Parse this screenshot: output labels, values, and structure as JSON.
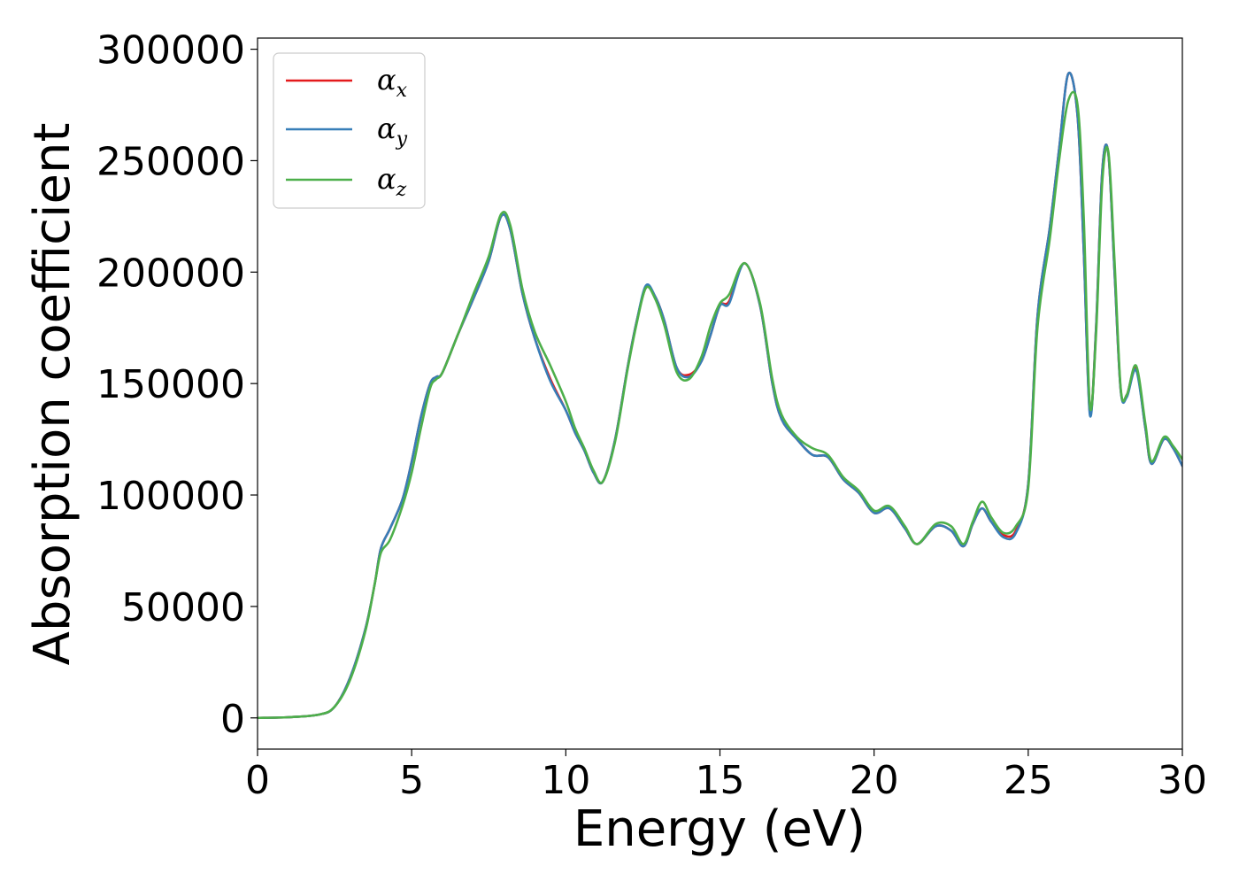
{
  "chart_data": {
    "type": "line",
    "title": "",
    "xlabel": "Energy (eV)",
    "ylabel": "Absorption coefficient",
    "xlim": [
      0,
      30
    ],
    "ylim": [
      -14000,
      305000
    ],
    "xticks": [
      0,
      5,
      10,
      15,
      20,
      25,
      30
    ],
    "yticks": [
      0,
      50000,
      100000,
      150000,
      200000,
      250000,
      300000
    ],
    "grid": false,
    "legend_position": "top-left",
    "series": [
      {
        "name": "αx",
        "legend_symbol": "α",
        "legend_subscript": "x",
        "color": "#e41a1c",
        "x": [
          0,
          1,
          2,
          2.5,
          3,
          3.5,
          3.8,
          4,
          4.3,
          4.7,
          5,
          5.3,
          5.6,
          5.8,
          6,
          6.5,
          7,
          7.5,
          7.9,
          8.2,
          8.6,
          9,
          9.5,
          10,
          10.3,
          10.6,
          10.9,
          11.2,
          11.6,
          12,
          12.3,
          12.6,
          12.9,
          13.2,
          13.6,
          14,
          14.4,
          14.7,
          15,
          15.3,
          15.8,
          16.3,
          16.7,
          17,
          17.5,
          18,
          18.5,
          19,
          19.5,
          20,
          20.5,
          21,
          21.4,
          22,
          22.5,
          22.9,
          23.2,
          23.5,
          23.8,
          24.2,
          24.6,
          25,
          25.3,
          25.7,
          26.0,
          26.3,
          26.6,
          26.8,
          27.0,
          27.2,
          27.4,
          27.6,
          27.8,
          28.0,
          28.2,
          28.5,
          28.8,
          29.0,
          29.4,
          29.7,
          30
        ],
        "y": [
          0,
          300,
          1500,
          5000,
          18000,
          40000,
          60000,
          76000,
          85000,
          98000,
          115000,
          135000,
          150000,
          153000,
          155000,
          172000,
          188000,
          205000,
          225000,
          219000,
          190000,
          170000,
          152000,
          138000,
          128000,
          120000,
          110000,
          106000,
          125000,
          157000,
          178000,
          193000,
          189000,
          178000,
          157000,
          154000,
          160000,
          172000,
          185000,
          187000,
          204000,
          185000,
          150000,
          134000,
          125000,
          118000,
          117000,
          107000,
          101000,
          92000,
          94000,
          85000,
          78000,
          86000,
          84000,
          77000,
          87000,
          94000,
          88000,
          82000,
          84000,
          105000,
          180000,
          220000,
          255000,
          289000,
          270000,
          210000,
          137000,
          175000,
          245000,
          253000,
          200000,
          147000,
          145000,
          157000,
          130000,
          114000,
          125000,
          121000,
          113000
        ]
      },
      {
        "name": "αy",
        "legend_symbol": "α",
        "legend_subscript": "y",
        "color": "#377eb8",
        "x": [
          0,
          1,
          2,
          2.5,
          3,
          3.5,
          3.8,
          4,
          4.3,
          4.7,
          5,
          5.3,
          5.6,
          5.8,
          6,
          6.5,
          7,
          7.5,
          7.9,
          8.2,
          8.6,
          9,
          9.5,
          10,
          10.3,
          10.6,
          10.9,
          11.2,
          11.6,
          12,
          12.3,
          12.6,
          12.9,
          13.2,
          13.6,
          14,
          14.4,
          14.7,
          15,
          15.3,
          15.8,
          16.3,
          16.7,
          17,
          17.5,
          18,
          18.5,
          19,
          19.5,
          20,
          20.5,
          21,
          21.4,
          22,
          22.5,
          22.9,
          23.2,
          23.5,
          23.8,
          24.2,
          24.6,
          25,
          25.3,
          25.7,
          26.0,
          26.3,
          26.6,
          26.8,
          27.0,
          27.2,
          27.4,
          27.6,
          27.8,
          28.0,
          28.2,
          28.5,
          28.8,
          29.0,
          29.4,
          29.7,
          30
        ],
        "y": [
          0,
          300,
          1500,
          5000,
          18000,
          40000,
          60000,
          76000,
          85000,
          98000,
          115000,
          135000,
          150000,
          153000,
          155000,
          172000,
          188000,
          205000,
          225000,
          219000,
          190000,
          170000,
          151000,
          138000,
          128000,
          120000,
          110000,
          106000,
          125000,
          157000,
          178000,
          194000,
          189000,
          178000,
          157000,
          153000,
          160000,
          172000,
          185000,
          186000,
          204000,
          185000,
          150000,
          134000,
          125000,
          118000,
          117000,
          107000,
          101000,
          92000,
          94000,
          85000,
          78000,
          86000,
          84000,
          77000,
          87000,
          94000,
          88000,
          81000,
          83000,
          105000,
          180000,
          220000,
          255000,
          289000,
          270000,
          210000,
          136000,
          175000,
          245000,
          253000,
          200000,
          147000,
          144000,
          156000,
          130000,
          114000,
          125000,
          121000,
          113000
        ]
      },
      {
        "name": "αz",
        "legend_symbol": "α",
        "legend_subscript": "z",
        "color": "#4daf4a",
        "x": [
          0,
          1,
          2,
          2.5,
          3,
          3.5,
          3.8,
          4,
          4.3,
          4.7,
          5,
          5.3,
          5.6,
          5.8,
          6,
          6.5,
          7,
          7.5,
          7.9,
          8.2,
          8.6,
          9,
          9.5,
          10,
          10.3,
          10.6,
          10.9,
          11.2,
          11.6,
          12,
          12.3,
          12.6,
          12.9,
          13.2,
          13.6,
          14,
          14.4,
          14.7,
          15,
          15.3,
          15.8,
          16.3,
          16.7,
          17,
          17.5,
          18,
          18.5,
          19,
          19.5,
          20,
          20.5,
          21,
          21.4,
          22,
          22.5,
          22.9,
          23.2,
          23.5,
          23.8,
          24.2,
          24.6,
          25,
          25.3,
          25.7,
          26.0,
          26.3,
          26.6,
          26.8,
          27.0,
          27.2,
          27.4,
          27.6,
          27.8,
          28.0,
          28.2,
          28.5,
          28.8,
          29.0,
          29.4,
          29.7,
          30
        ],
        "y": [
          0,
          300,
          1500,
          5000,
          17000,
          39000,
          60000,
          74000,
          80000,
          95000,
          110000,
          130000,
          148000,
          152000,
          155000,
          172000,
          190000,
          207000,
          226000,
          221000,
          192000,
          173000,
          158000,
          142000,
          130000,
          121000,
          111000,
          106000,
          124000,
          156000,
          177000,
          193000,
          188000,
          176000,
          155000,
          152000,
          162000,
          176000,
          186000,
          190000,
          204000,
          186000,
          152000,
          136000,
          126000,
          121000,
          118000,
          108000,
          102000,
          93000,
          95000,
          86000,
          78000,
          87000,
          86000,
          78000,
          88000,
          97000,
          90000,
          83000,
          86000,
          103000,
          175000,
          215000,
          250000,
          277000,
          275000,
          225000,
          140000,
          172000,
          240000,
          254000,
          205000,
          148000,
          145000,
          158000,
          132000,
          115000,
          126000,
          122000,
          116000
        ]
      }
    ]
  }
}
